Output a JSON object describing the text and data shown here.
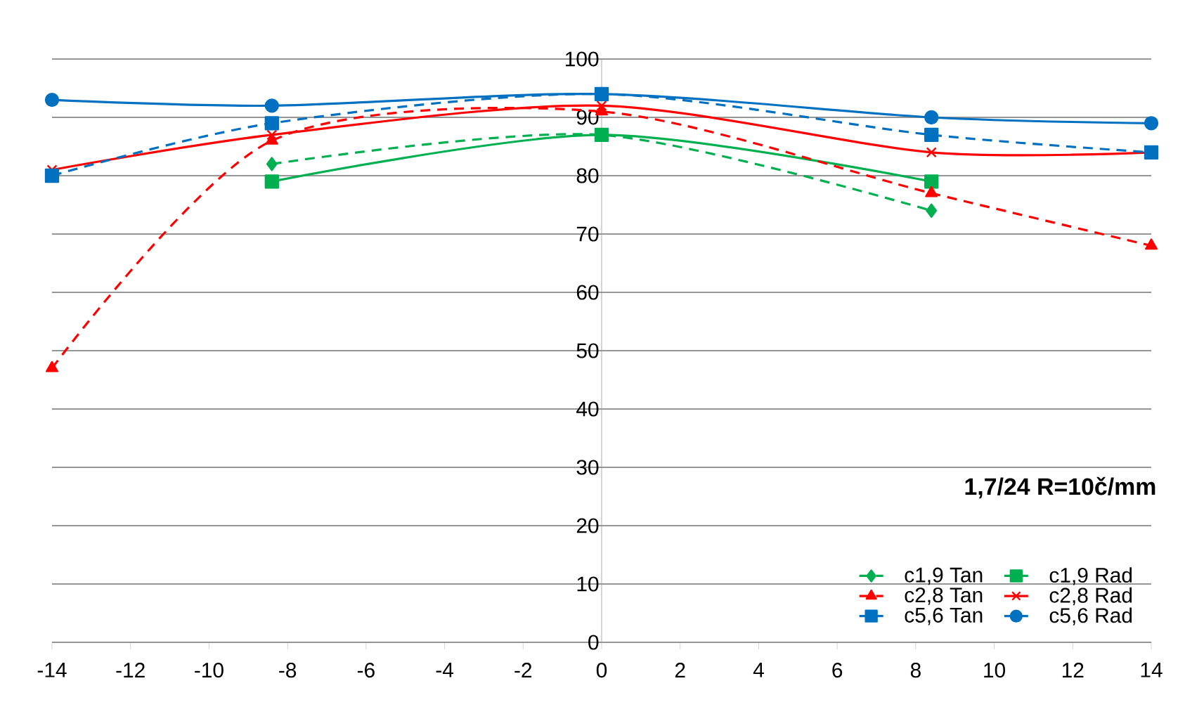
{
  "chart_data": {
    "type": "line",
    "title": "1,7/24  R=10č/mm",
    "x": [
      -14,
      -8.4,
      0,
      8.4,
      14
    ],
    "series": [
      {
        "name": "c1,9 Tan",
        "color": "#00b050",
        "values": [
          null,
          82,
          87,
          74,
          null
        ],
        "marker": "diamond",
        "line_style": "dashed"
      },
      {
        "name": "c1,9 Rad",
        "color": "#00b050",
        "values": [
          null,
          79,
          87,
          79,
          null
        ],
        "marker": "square",
        "line_style": "solid"
      },
      {
        "name": "c2,8 Tan",
        "color": "#ff0000",
        "values": [
          47,
          86,
          91,
          77,
          68
        ],
        "marker": "triangle",
        "line_style": "dashed"
      },
      {
        "name": "c2,8 Rad",
        "color": "#ff0000",
        "values": [
          81,
          87,
          92,
          84,
          84
        ],
        "marker": "cross",
        "line_style": "solid"
      },
      {
        "name": "c5,6 Tan",
        "color": "#0070c0",
        "values": [
          80,
          89,
          94,
          87,
          84
        ],
        "marker": "square",
        "line_style": "dashed"
      },
      {
        "name": "c5,6 Rad",
        "color": "#0070c0",
        "values": [
          93,
          92,
          94,
          90,
          89
        ],
        "marker": "circle",
        "line_style": "solid"
      }
    ],
    "xlim": [
      -14,
      14
    ],
    "ylim": [
      0,
      100
    ],
    "xticks": [
      -14,
      -12,
      -10,
      -8,
      -6,
      -4,
      -2,
      0,
      2,
      4,
      6,
      8,
      10,
      12,
      14
    ],
    "yticks": [
      0,
      10,
      20,
      30,
      40,
      50,
      60,
      70,
      80,
      90,
      100
    ],
    "grid": "y",
    "legend": "bottom right"
  }
}
